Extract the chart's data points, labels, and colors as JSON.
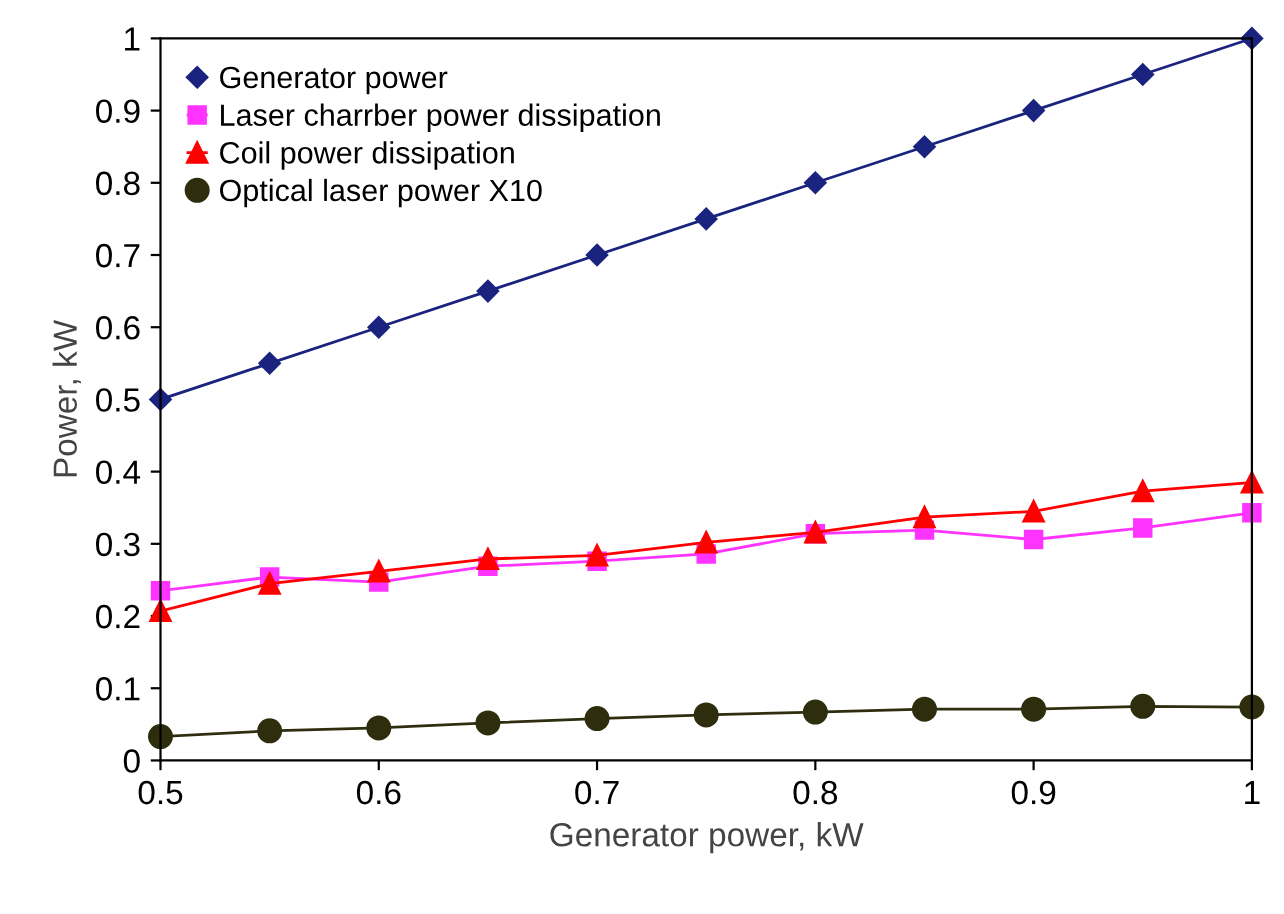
{
  "chart_data": {
    "type": "line",
    "xlabel": "Generator power, kW",
    "ylabel": "Power, kW",
    "x": [
      0.5,
      0.55,
      0.6,
      0.65,
      0.7,
      0.75,
      0.8,
      0.85,
      0.9,
      0.95,
      1.0
    ],
    "series": [
      {
        "name": "Generator power",
        "color": "#1a237e",
        "marker": "diamond",
        "values": [
          0.5,
          0.55,
          0.6,
          0.65,
          0.7,
          0.75,
          0.8,
          0.85,
          0.9,
          0.95,
          1.0
        ]
      },
      {
        "name": "Laser charrber power dissipation",
        "color": "#ff33ff",
        "marker": "square",
        "values": [
          0.235,
          0.254,
          0.247,
          0.269,
          0.276,
          0.286,
          0.314,
          0.319,
          0.306,
          0.322,
          0.343
        ]
      },
      {
        "name": "Coil power dissipation",
        "color": "#ff0000",
        "marker": "triangle",
        "values": [
          0.207,
          0.245,
          0.262,
          0.279,
          0.284,
          0.302,
          0.316,
          0.337,
          0.345,
          0.373,
          0.385
        ]
      },
      {
        "name": "Optical laser power X10",
        "color": "#2e2e0e",
        "marker": "circle",
        "values": [
          0.033,
          0.041,
          0.045,
          0.052,
          0.058,
          0.063,
          0.067,
          0.071,
          0.071,
          0.075,
          0.074
        ]
      }
    ],
    "xlim": [
      0.5,
      1.0
    ],
    "xticks": [
      0.5,
      0.6,
      0.7,
      0.8,
      0.9,
      1
    ],
    "ylim": [
      0,
      1
    ],
    "yticks": [
      0,
      0.1,
      0.2,
      0.3,
      0.4,
      0.5,
      0.6,
      0.7,
      0.8,
      0.9,
      1
    ],
    "grid": false,
    "legend": "top left",
    "line_style": "solid"
  }
}
